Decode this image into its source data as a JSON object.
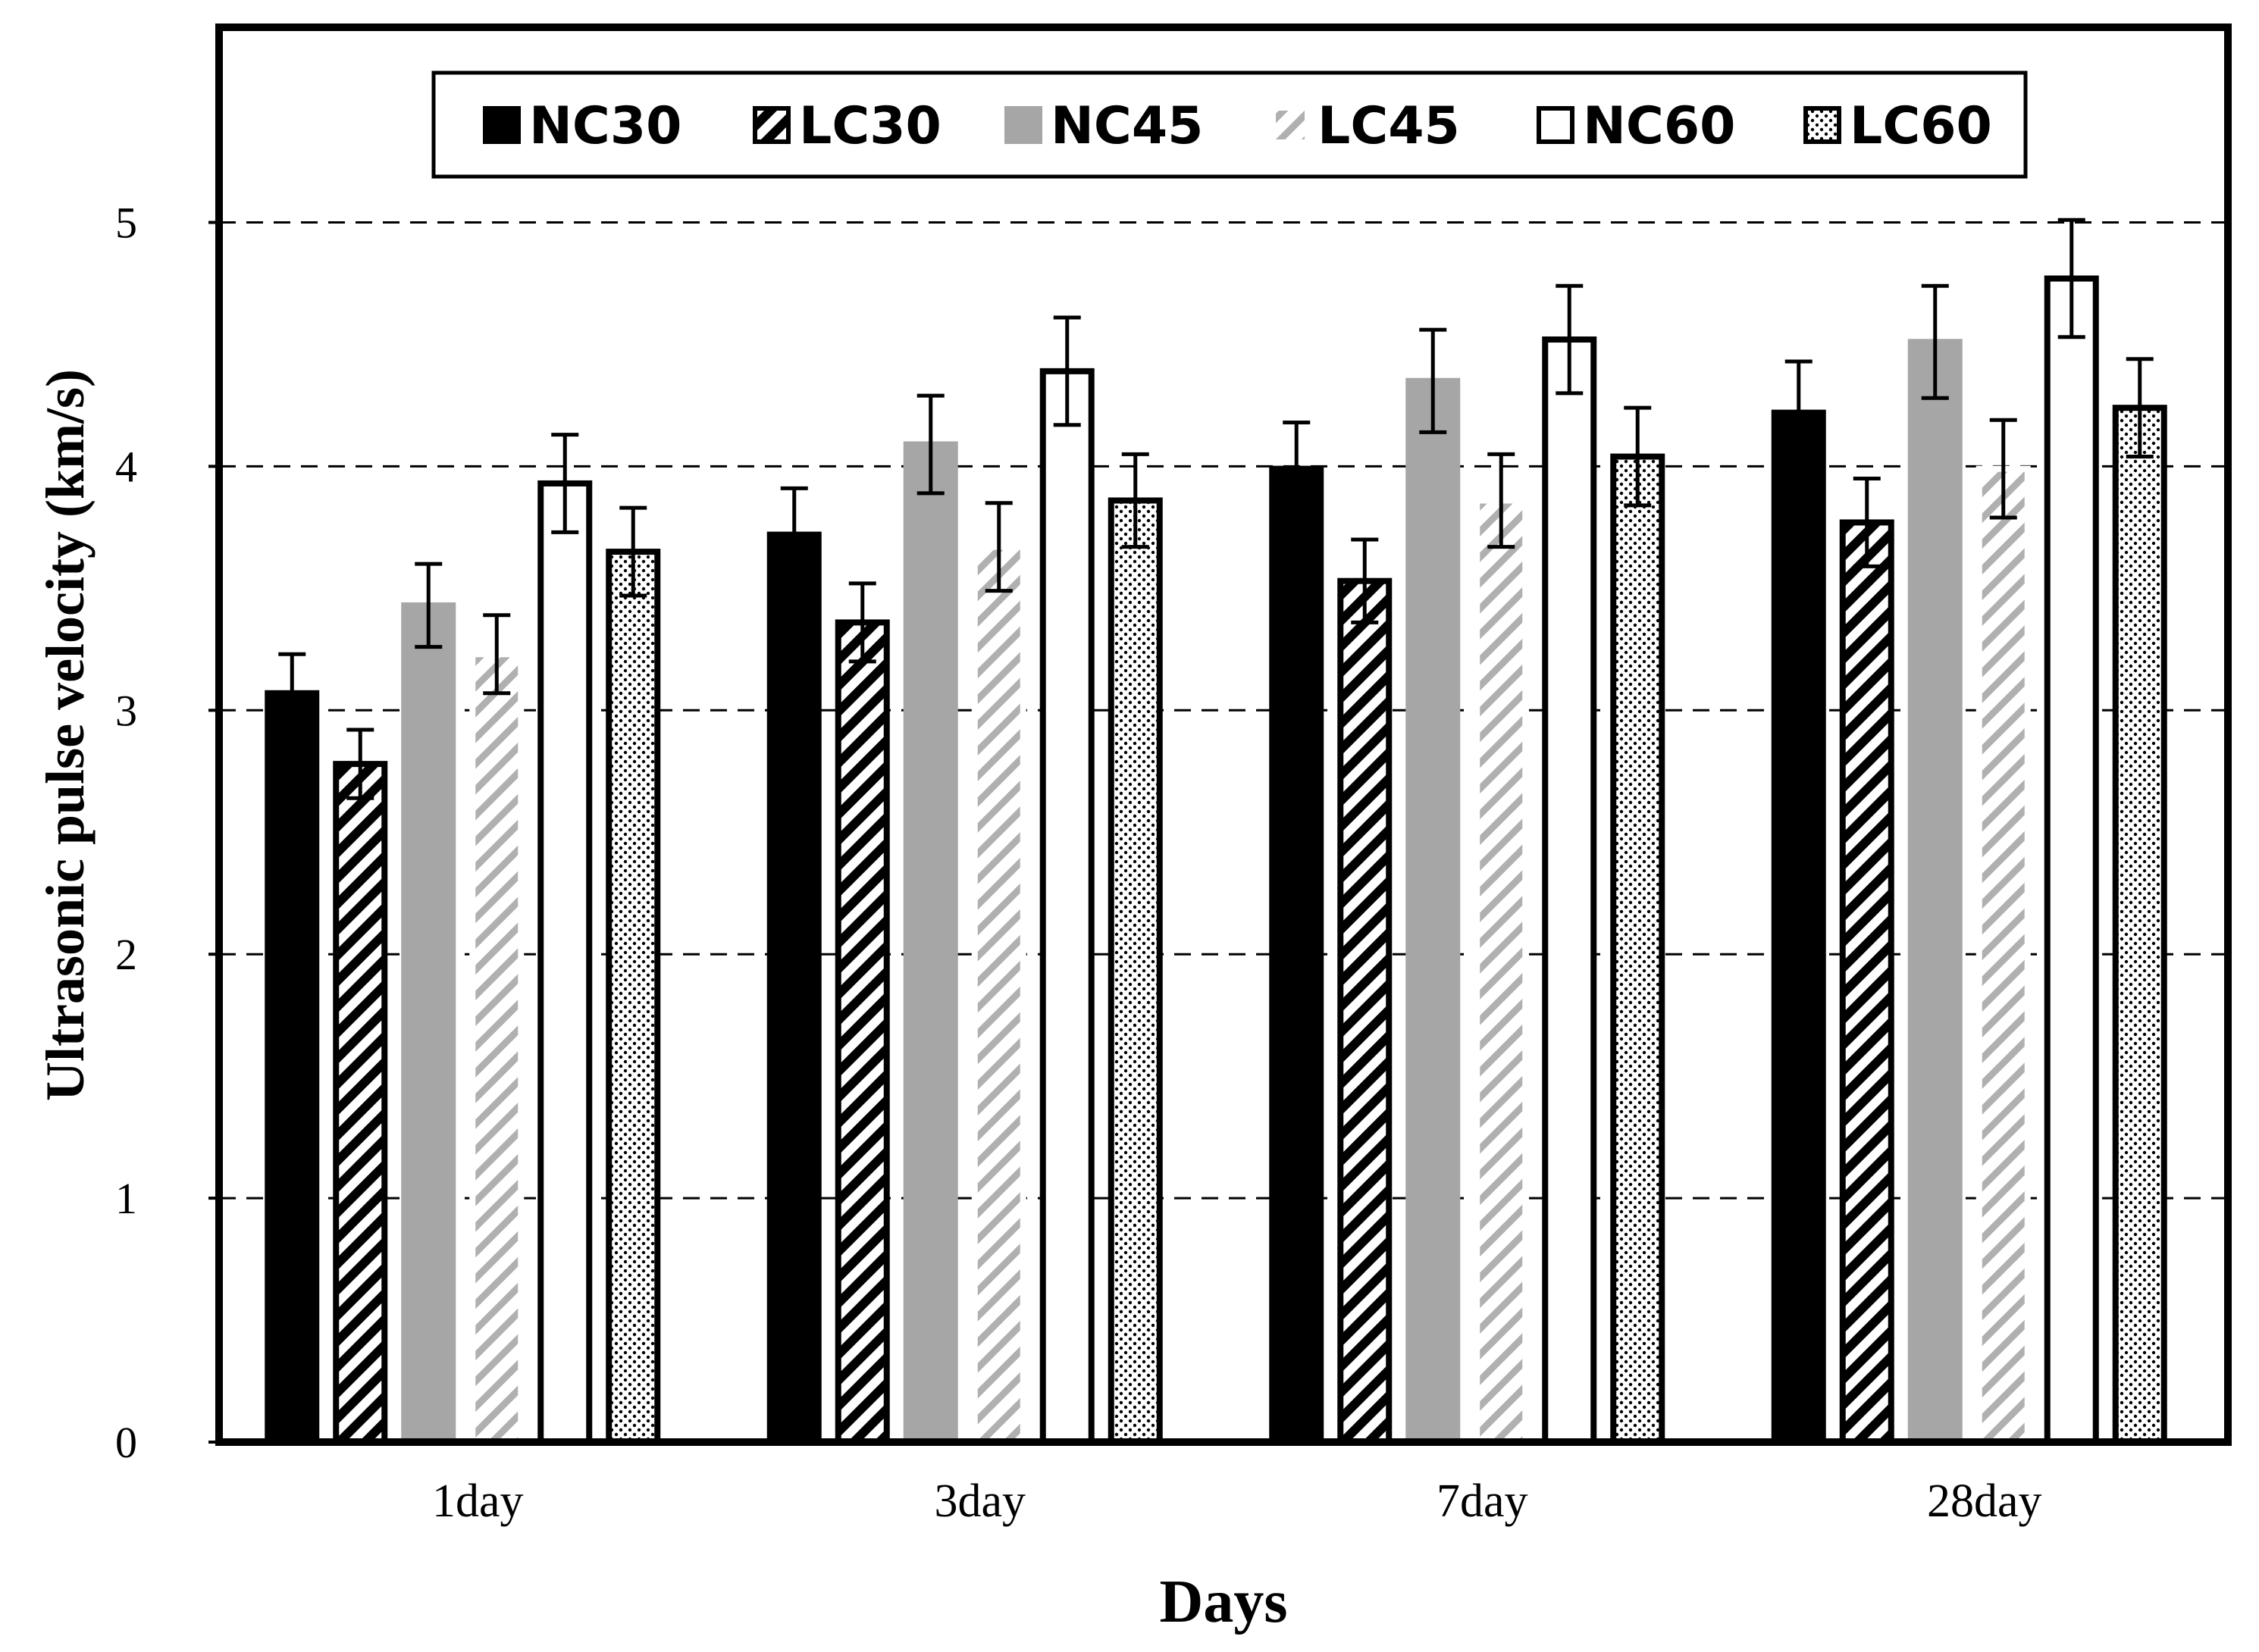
{
  "chart_data": {
    "type": "bar",
    "xlabel": "Days",
    "ylabel": "Ultrasonic pulse velocity (km/s)",
    "ylim": [
      0,
      5.8
    ],
    "yticks": [
      0,
      1,
      2,
      3,
      4,
      5
    ],
    "ytick_labels": [
      "0",
      "1",
      "2",
      "3",
      "4",
      "5"
    ],
    "grid": "dashed horizontal at major ticks",
    "legend_position": "top",
    "categories": [
      "1day",
      "3day",
      "7day",
      "28day"
    ],
    "series": [
      {
        "name": "NC30",
        "pattern": "solid-black",
        "values": [
          3.07,
          3.72,
          3.99,
          4.22
        ],
        "errors": [
          0.16,
          0.19,
          0.19,
          0.21
        ]
      },
      {
        "name": "LC30",
        "pattern": "hatch-black",
        "values": [
          2.78,
          3.36,
          3.53,
          3.77
        ],
        "errors": [
          0.14,
          0.16,
          0.17,
          0.18
        ]
      },
      {
        "name": "NC45",
        "pattern": "solid-gray",
        "values": [
          3.43,
          4.09,
          4.35,
          4.51
        ],
        "errors": [
          0.17,
          0.2,
          0.21,
          0.23
        ]
      },
      {
        "name": "LC45",
        "pattern": "hatch-gray",
        "values": [
          3.23,
          3.67,
          3.86,
          3.99
        ],
        "errors": [
          0.16,
          0.18,
          0.19,
          0.2
        ]
      },
      {
        "name": "NC60",
        "pattern": "white",
        "values": [
          3.93,
          4.39,
          4.52,
          4.77
        ],
        "errors": [
          0.2,
          0.22,
          0.22,
          0.24
        ]
      },
      {
        "name": "LC60",
        "pattern": "dots",
        "values": [
          3.65,
          3.86,
          4.04,
          4.24
        ],
        "errors": [
          0.18,
          0.19,
          0.2,
          0.2
        ]
      }
    ]
  }
}
